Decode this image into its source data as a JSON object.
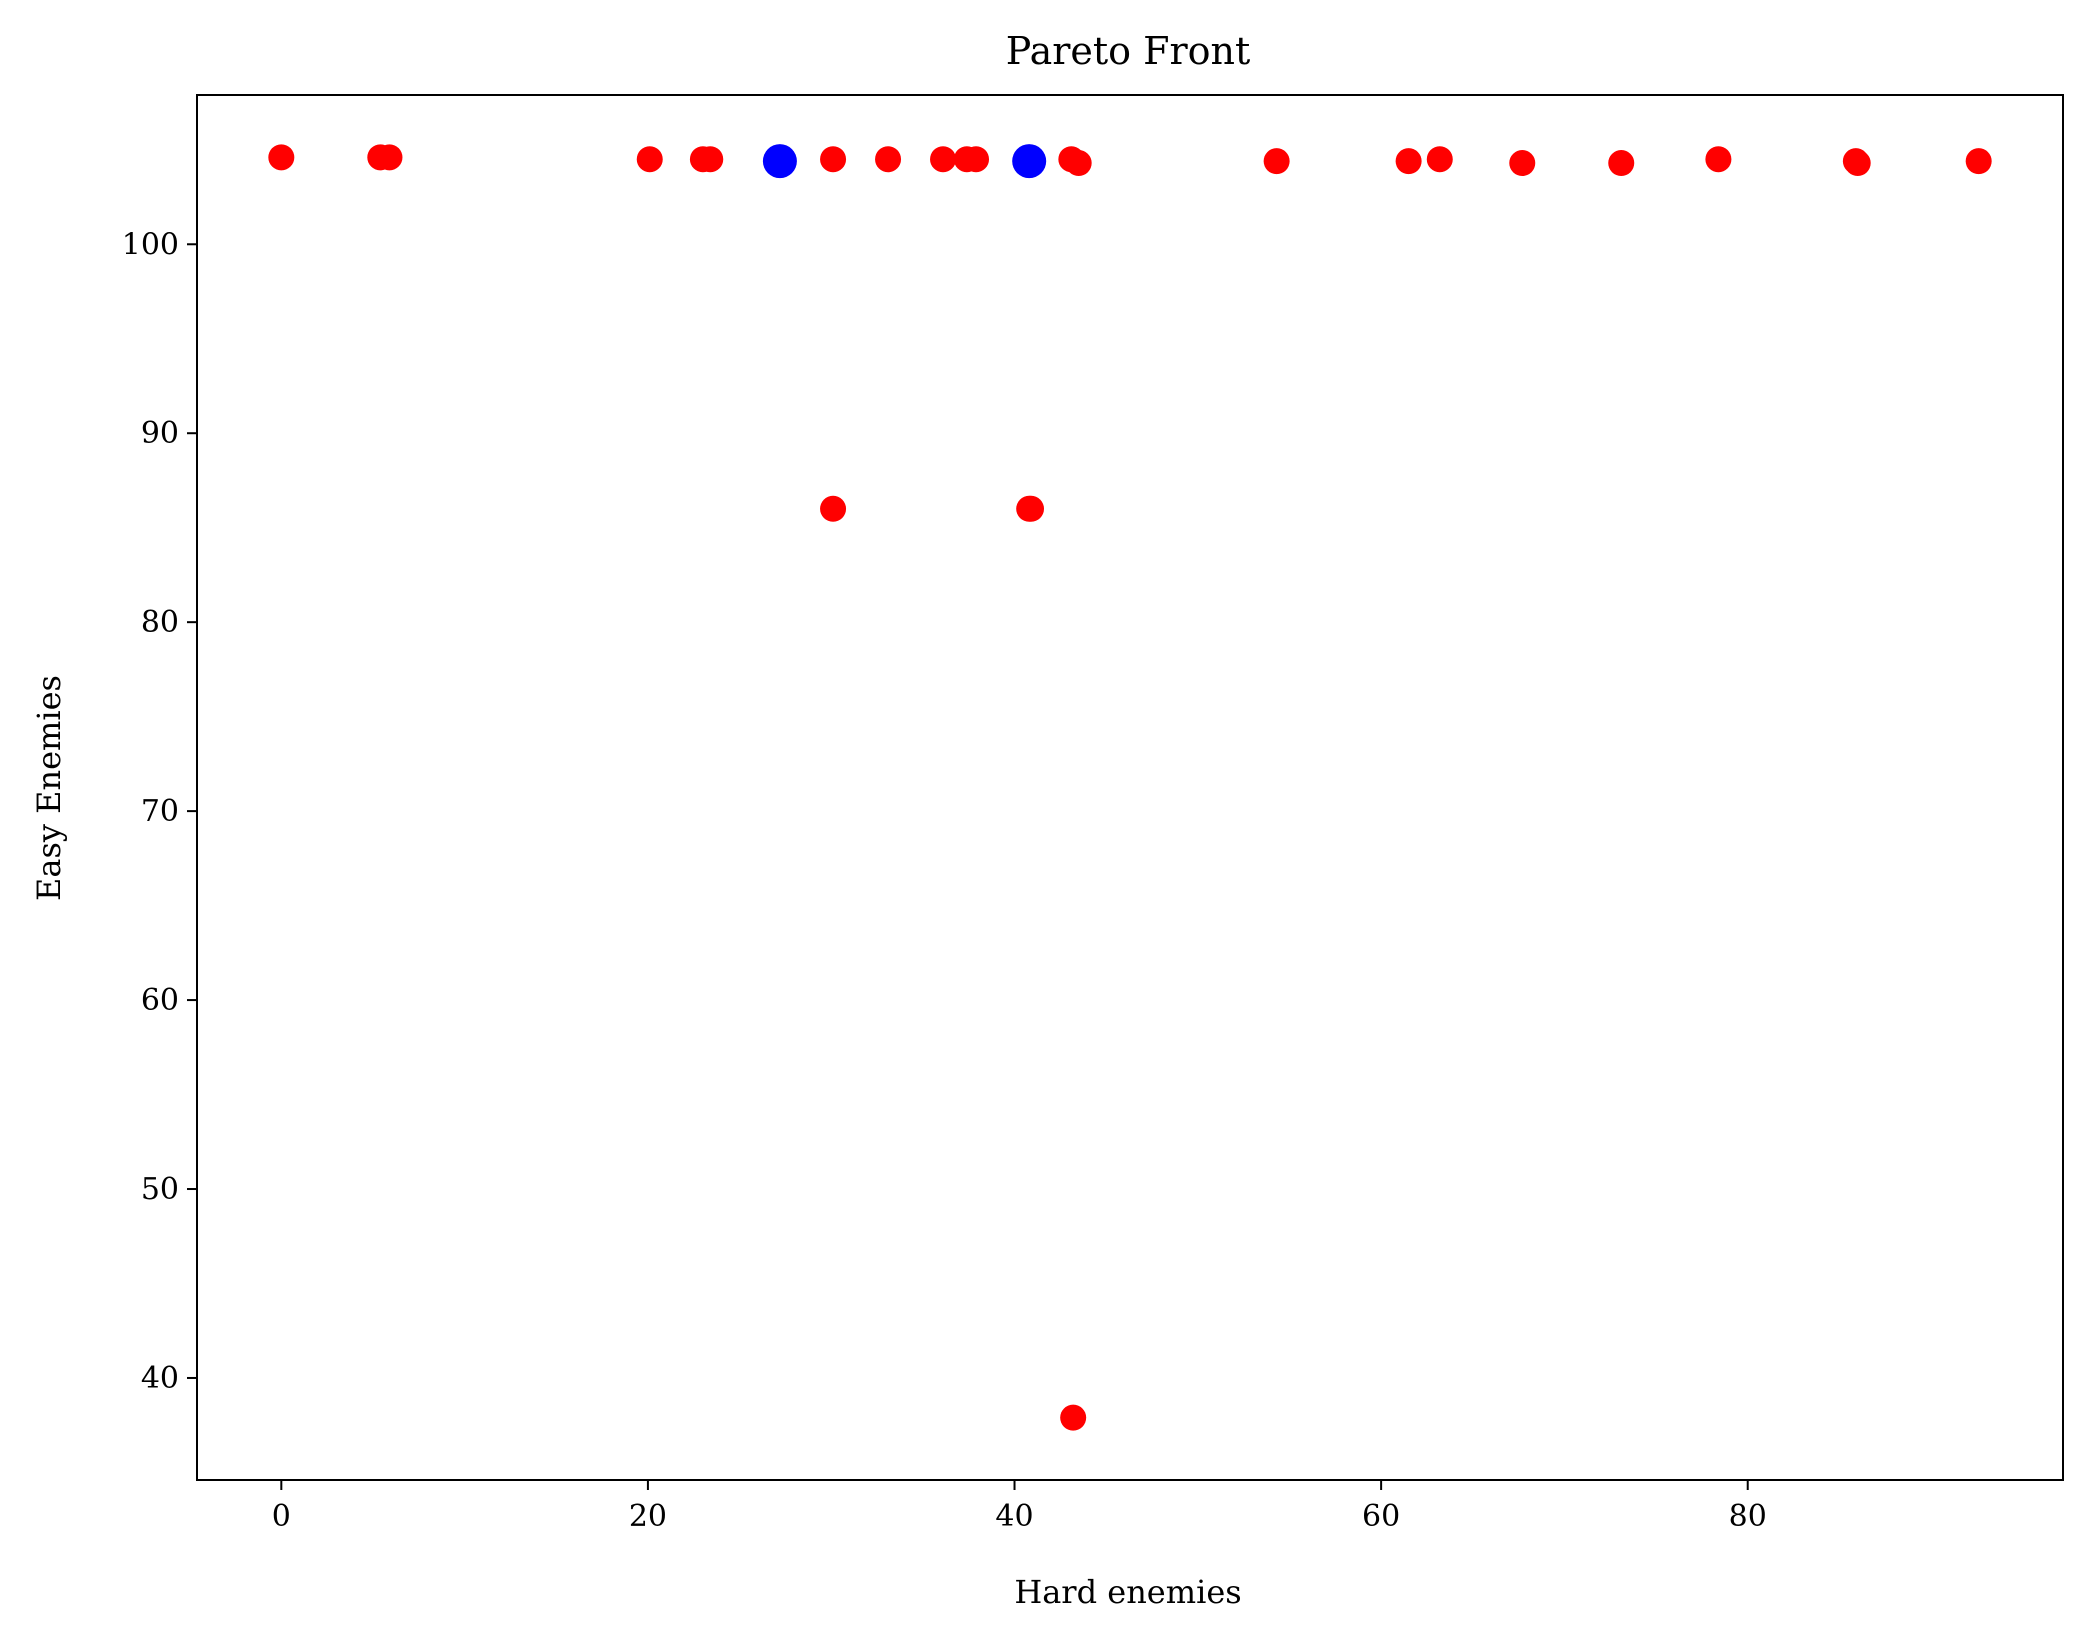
{
  "chart_data": {
    "type": "scatter",
    "title": "Pareto Front",
    "xlabel": "Hard enemies",
    "ylabel": "Easy Enemies",
    "xlim": [
      -4.6,
      97.2
    ],
    "ylim": [
      34.6,
      107.9
    ],
    "xticks": [
      0,
      20,
      40,
      60,
      80
    ],
    "yticks": [
      40,
      50,
      60,
      70,
      80,
      90,
      100
    ],
    "grid": false,
    "legend": "none",
    "series": [
      {
        "color": "#ff0000",
        "marker": "small",
        "points": [
          {
            "x": 0.0,
            "y": 104.6
          },
          {
            "x": 5.4,
            "y": 104.6
          },
          {
            "x": 5.9,
            "y": 104.6
          },
          {
            "x": 20.1,
            "y": 104.5
          },
          {
            "x": 23.0,
            "y": 104.5
          },
          {
            "x": 23.4,
            "y": 104.5
          },
          {
            "x": 30.1,
            "y": 104.5
          },
          {
            "x": 33.1,
            "y": 104.5
          },
          {
            "x": 36.1,
            "y": 104.5
          },
          {
            "x": 37.4,
            "y": 104.5
          },
          {
            "x": 37.9,
            "y": 104.5
          },
          {
            "x": 43.1,
            "y": 104.5
          },
          {
            "x": 43.5,
            "y": 104.3
          },
          {
            "x": 54.3,
            "y": 104.4
          },
          {
            "x": 61.5,
            "y": 104.4
          },
          {
            "x": 63.2,
            "y": 104.5
          },
          {
            "x": 67.7,
            "y": 104.3
          },
          {
            "x": 73.1,
            "y": 104.3
          },
          {
            "x": 78.4,
            "y": 104.5
          },
          {
            "x": 85.9,
            "y": 104.4
          },
          {
            "x": 86.0,
            "y": 104.3
          },
          {
            "x": 92.6,
            "y": 104.4
          },
          {
            "x": 30.1,
            "y": 86.0
          },
          {
            "x": 40.8,
            "y": 86.0
          },
          {
            "x": 40.9,
            "y": 86.0
          },
          {
            "x": 43.2,
            "y": 37.9
          }
        ]
      },
      {
        "color": "#0000ff",
        "marker": "large",
        "points": [
          {
            "x": 27.2,
            "y": 104.4
          },
          {
            "x": 40.8,
            "y": 104.4
          }
        ]
      }
    ]
  }
}
